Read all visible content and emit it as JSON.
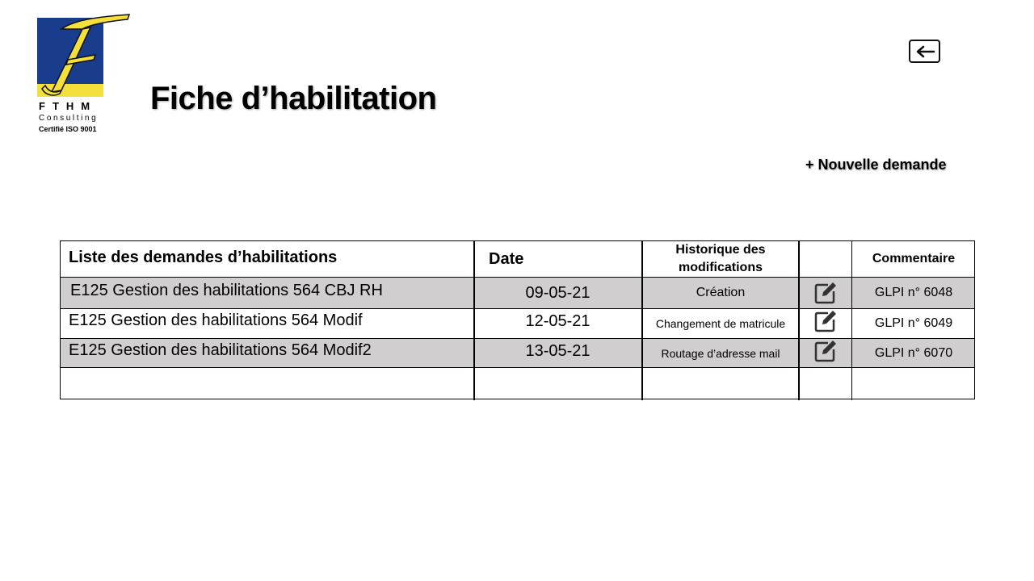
{
  "logo": {
    "letter": "F",
    "name": "FTHM",
    "subtitle": "Consulting",
    "certification": "Certifié ISO 9001"
  },
  "header": {
    "title": "Fiche d’habilitation",
    "back_icon": "arrow-left-box-icon",
    "new_request_label": "+ Nouvelle demande"
  },
  "table": {
    "columns": [
      "Liste des demandes d’habilitations",
      "Date",
      "Historique des modifications",
      "",
      "Commentaire"
    ],
    "edit_icon": "edit-icon",
    "rows": [
      {
        "name": "E125 Gestion des habilitations 564 CBJ RH",
        "date": "09-05-21",
        "history": "Création",
        "comment": "GLPI n° 6048"
      },
      {
        "name": "E125 Gestion des habilitations 564 Modif",
        "date": "12-05-21",
        "history": "Changement de matricule",
        "comment": "GLPI n° 6049"
      },
      {
        "name": "E125 Gestion des habilitations 564 Modif2",
        "date": "13-05-21",
        "history": "Routage d’adresse mail",
        "comment": "GLPI n° 6070"
      }
    ]
  },
  "colors": {
    "logo_blue": "#1a3c8c",
    "logo_yellow": "#f4e03a",
    "row_gray": "#d0cece"
  }
}
